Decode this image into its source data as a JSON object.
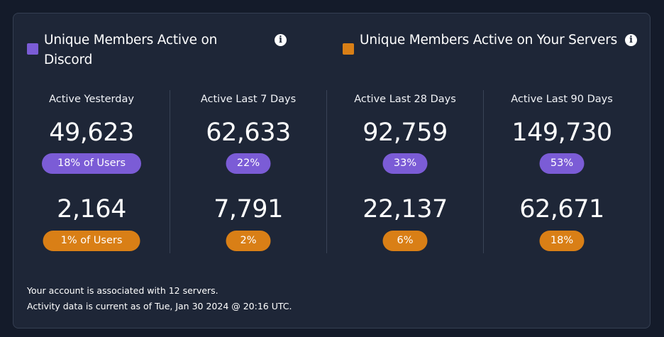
{
  "colors": {
    "discord": "#7b5cd6",
    "servers": "#d97f16"
  },
  "legend": {
    "discord": {
      "label": "Unique Members Active on Discord",
      "icon": "info-icon"
    },
    "servers": {
      "label": "Unique Members Active on Your Servers",
      "icon": "info-icon"
    }
  },
  "info_glyph": "i",
  "periods": [
    {
      "label": "Active Yesterday",
      "discord": {
        "value": "49,623",
        "percent": "18% of Users"
      },
      "servers": {
        "value": "2,164",
        "percent": "1% of Users"
      }
    },
    {
      "label": "Active Last 7 Days",
      "discord": {
        "value": "62,633",
        "percent": "22%"
      },
      "servers": {
        "value": "7,791",
        "percent": "2%"
      }
    },
    {
      "label": "Active Last 28 Days",
      "discord": {
        "value": "92,759",
        "percent": "33%"
      },
      "servers": {
        "value": "22,137",
        "percent": "6%"
      }
    },
    {
      "label": "Active Last 90 Days",
      "discord": {
        "value": "149,730",
        "percent": "53%"
      },
      "servers": {
        "value": "62,671",
        "percent": "18%"
      }
    }
  ],
  "footer": {
    "line1": "Your account is associated with 12 servers.",
    "line2": "Activity data is current as of Tue, Jan 30 2024 @ 20:16 UTC."
  }
}
